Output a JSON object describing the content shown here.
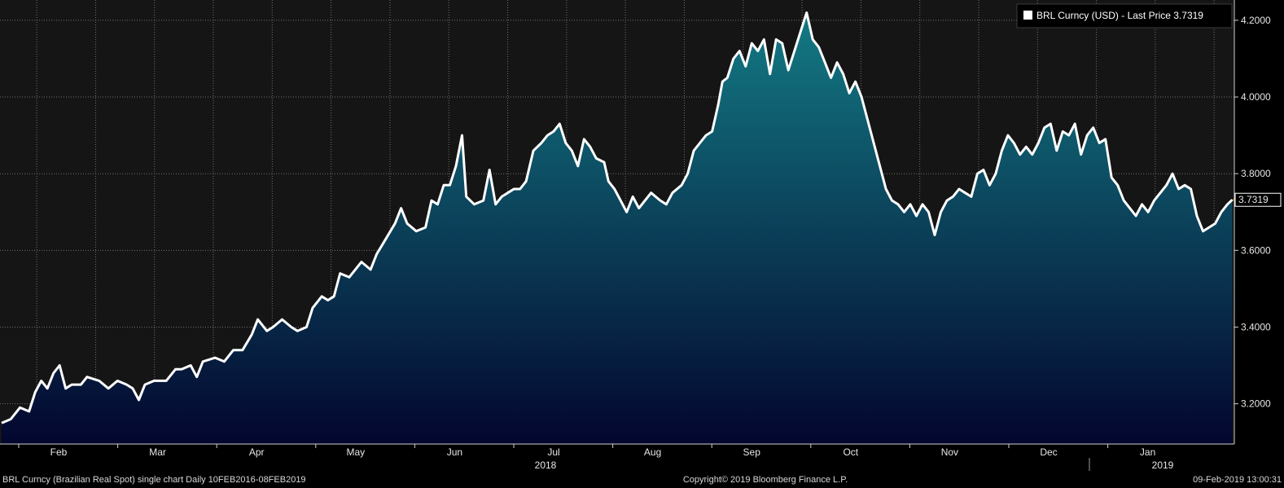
{
  "legend": {
    "series_label": "BRL Curncy (USD) - Last Price 3.7319"
  },
  "last_price_tag": "3.7319",
  "footer": {
    "left": "BRL Curncy (Brazilian Real Spot) single chart  Daily 10FEB2016-08FEB2019",
    "center": "Copyright© 2019 Bloomberg Finance L.P.",
    "right": "09-Feb-2019 13:00:31"
  },
  "colors": {
    "background": "#000000",
    "plot_background": "#151515",
    "line": "#ffffff",
    "area_top": "#137a84",
    "area_bottom": "#03062e",
    "grid": "#6f6f6f",
    "last_price_marker": "#ff9c1a"
  },
  "chart_data": {
    "type": "area",
    "title": "",
    "xlabel": "",
    "ylabel": "",
    "ylim": [
      3.0951,
      4.2529
    ],
    "yticks": [
      "3.2000",
      "3.4000",
      "3.6000",
      "3.8000",
      "4.0000",
      "4.2000"
    ],
    "grid": true,
    "legend_position": "top-right",
    "x_tick_labels": [
      {
        "label": "Feb",
        "month": 1
      },
      {
        "label": "Mar",
        "month": 2
      },
      {
        "label": "Apr",
        "month": 3
      },
      {
        "label": "May",
        "month": 4
      },
      {
        "label": "Jun",
        "month": 5
      },
      {
        "label": "Jul",
        "month": 6
      },
      {
        "label": "Aug",
        "month": 7
      },
      {
        "label": "Sep",
        "month": 8
      },
      {
        "label": "Oct",
        "month": 9
      },
      {
        "label": "Nov",
        "month": 10
      },
      {
        "label": "Dec",
        "month": 11
      },
      {
        "label": "Jan",
        "month": 12
      }
    ],
    "year_labels": [
      {
        "label": "2018",
        "month": 5.6
      },
      {
        "label": "2019",
        "month": 12.6
      }
    ],
    "series": [
      {
        "name": "BRL Curncy (USD) - Last Price",
        "last_value": 3.7319,
        "points": [
          [
            0,
            3.15
          ],
          [
            0.15,
            3.16
          ],
          [
            0.3,
            3.19
          ],
          [
            0.45,
            3.18
          ],
          [
            0.55,
            3.23
          ],
          [
            0.65,
            3.26
          ],
          [
            0.75,
            3.24
          ],
          [
            0.85,
            3.28
          ],
          [
            0.95,
            3.3
          ],
          [
            1.05,
            3.24
          ],
          [
            1.15,
            3.25
          ],
          [
            1.3,
            3.25
          ],
          [
            1.4,
            3.27
          ],
          [
            1.6,
            3.26
          ],
          [
            1.75,
            3.24
          ],
          [
            1.9,
            3.26
          ],
          [
            2.05,
            3.25
          ],
          [
            2.15,
            3.24
          ],
          [
            2.25,
            3.21
          ],
          [
            2.35,
            3.25
          ],
          [
            2.5,
            3.26
          ],
          [
            2.7,
            3.26
          ],
          [
            2.85,
            3.29
          ],
          [
            2.95,
            3.29
          ],
          [
            3.1,
            3.3
          ],
          [
            3.2,
            3.27
          ],
          [
            3.3,
            3.31
          ],
          [
            3.5,
            3.32
          ],
          [
            3.65,
            3.31
          ],
          [
            3.8,
            3.34
          ],
          [
            3.95,
            3.34
          ],
          [
            4.1,
            3.38
          ],
          [
            4.2,
            3.42
          ],
          [
            4.35,
            3.39
          ],
          [
            4.45,
            3.4
          ],
          [
            4.6,
            3.42
          ],
          [
            4.75,
            3.4
          ],
          [
            4.85,
            3.39
          ],
          [
            5.0,
            3.4
          ],
          [
            5.1,
            3.45
          ],
          [
            5.25,
            3.48
          ],
          [
            5.35,
            3.47
          ],
          [
            5.45,
            3.48
          ],
          [
            5.55,
            3.54
          ],
          [
            5.7,
            3.53
          ],
          [
            5.8,
            3.55
          ],
          [
            5.9,
            3.57
          ],
          [
            6.05,
            3.55
          ],
          [
            6.15,
            3.59
          ],
          [
            6.3,
            3.63
          ],
          [
            6.45,
            3.67
          ],
          [
            6.55,
            3.71
          ],
          [
            6.65,
            3.67
          ],
          [
            6.8,
            3.65
          ],
          [
            6.95,
            3.66
          ],
          [
            7.05,
            3.73
          ],
          [
            7.15,
            3.72
          ],
          [
            7.25,
            3.77
          ],
          [
            7.35,
            3.77
          ],
          [
            7.45,
            3.82
          ],
          [
            7.55,
            3.9
          ],
          [
            7.62,
            3.74
          ],
          [
            7.75,
            3.72
          ],
          [
            7.9,
            3.73
          ],
          [
            8.0,
            3.81
          ],
          [
            8.1,
            3.72
          ],
          [
            8.2,
            3.74
          ],
          [
            8.3,
            3.75
          ],
          [
            8.4,
            3.76
          ],
          [
            8.5,
            3.76
          ],
          [
            8.6,
            3.78
          ],
          [
            8.72,
            3.86
          ],
          [
            8.85,
            3.88
          ],
          [
            8.95,
            3.9
          ],
          [
            9.05,
            3.91
          ],
          [
            9.15,
            3.93
          ],
          [
            9.25,
            3.88
          ],
          [
            9.35,
            3.86
          ],
          [
            9.45,
            3.82
          ],
          [
            9.55,
            3.89
          ],
          [
            9.65,
            3.87
          ],
          [
            9.75,
            3.84
          ],
          [
            9.88,
            3.83
          ],
          [
            9.95,
            3.78
          ],
          [
            10.05,
            3.76
          ],
          [
            10.15,
            3.73
          ],
          [
            10.25,
            3.7
          ],
          [
            10.35,
            3.74
          ],
          [
            10.45,
            3.71
          ],
          [
            10.55,
            3.73
          ],
          [
            10.65,
            3.75
          ],
          [
            10.8,
            3.73
          ],
          [
            10.9,
            3.72
          ],
          [
            11.0,
            3.75
          ],
          [
            11.15,
            3.77
          ],
          [
            11.25,
            3.8
          ],
          [
            11.35,
            3.86
          ],
          [
            11.45,
            3.88
          ],
          [
            11.55,
            3.9
          ],
          [
            11.65,
            3.91
          ],
          [
            11.75,
            3.98
          ],
          [
            11.82,
            4.04
          ],
          [
            11.9,
            4.05
          ],
          [
            12.0,
            4.1
          ],
          [
            12.1,
            4.12
          ],
          [
            12.2,
            4.08
          ],
          [
            12.3,
            4.14
          ],
          [
            12.4,
            4.12
          ],
          [
            12.5,
            4.15
          ],
          [
            12.6,
            4.06
          ],
          [
            12.7,
            4.15
          ],
          [
            12.8,
            4.14
          ],
          [
            12.9,
            4.07
          ],
          [
            13.0,
            4.12
          ],
          [
            13.1,
            4.17
          ],
          [
            13.2,
            4.22
          ],
          [
            13.3,
            4.15
          ],
          [
            13.4,
            4.13
          ],
          [
            13.5,
            4.09
          ],
          [
            13.6,
            4.05
          ],
          [
            13.7,
            4.09
          ],
          [
            13.8,
            4.06
          ],
          [
            13.9,
            4.01
          ],
          [
            14.0,
            4.04
          ],
          [
            14.1,
            4.0
          ],
          [
            14.2,
            3.94
          ],
          [
            14.3,
            3.88
          ],
          [
            14.4,
            3.82
          ],
          [
            14.5,
            3.76
          ],
          [
            14.6,
            3.73
          ],
          [
            14.7,
            3.72
          ],
          [
            14.8,
            3.7
          ],
          [
            14.9,
            3.72
          ],
          [
            15.0,
            3.69
          ],
          [
            15.1,
            3.72
          ],
          [
            15.2,
            3.7
          ],
          [
            15.3,
            3.64
          ],
          [
            15.4,
            3.7
          ],
          [
            15.5,
            3.73
          ],
          [
            15.6,
            3.74
          ],
          [
            15.7,
            3.76
          ],
          [
            15.8,
            3.75
          ],
          [
            15.9,
            3.74
          ],
          [
            16.0,
            3.8
          ],
          [
            16.1,
            3.81
          ],
          [
            16.2,
            3.77
          ],
          [
            16.3,
            3.8
          ],
          [
            16.4,
            3.86
          ],
          [
            16.5,
            3.9
          ],
          [
            16.6,
            3.88
          ],
          [
            16.7,
            3.85
          ],
          [
            16.8,
            3.87
          ],
          [
            16.9,
            3.85
          ],
          [
            17.0,
            3.88
          ],
          [
            17.1,
            3.92
          ],
          [
            17.2,
            3.93
          ],
          [
            17.3,
            3.86
          ],
          [
            17.4,
            3.91
          ],
          [
            17.5,
            3.9
          ],
          [
            17.6,
            3.93
          ],
          [
            17.7,
            3.85
          ],
          [
            17.8,
            3.9
          ],
          [
            17.9,
            3.92
          ],
          [
            18.0,
            3.88
          ],
          [
            18.1,
            3.89
          ],
          [
            18.2,
            3.79
          ],
          [
            18.3,
            3.77
          ],
          [
            18.4,
            3.73
          ],
          [
            18.5,
            3.71
          ],
          [
            18.6,
            3.69
          ],
          [
            18.7,
            3.72
          ],
          [
            18.8,
            3.7
          ],
          [
            18.9,
            3.73
          ],
          [
            19.0,
            3.75
          ],
          [
            19.1,
            3.77
          ],
          [
            19.2,
            3.8
          ],
          [
            19.3,
            3.76
          ],
          [
            19.4,
            3.77
          ],
          [
            19.5,
            3.76
          ],
          [
            19.6,
            3.69
          ],
          [
            19.7,
            3.65
          ],
          [
            19.8,
            3.66
          ],
          [
            19.9,
            3.67
          ],
          [
            20.0,
            3.7
          ],
          [
            20.1,
            3.72
          ],
          [
            20.18,
            3.7319
          ]
        ]
      }
    ]
  }
}
